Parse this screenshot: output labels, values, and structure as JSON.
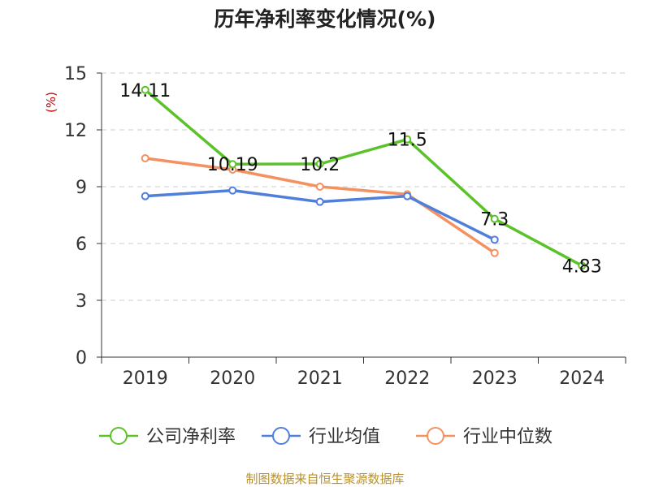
{
  "chart_data": {
    "type": "line",
    "title": "历年净利率变化情况(%)",
    "ylabel": "(%)",
    "categories": [
      "2019",
      "2020",
      "2021",
      "2022",
      "2023",
      "2024"
    ],
    "yticks": [
      "0",
      "3",
      "6",
      "9",
      "12",
      "15"
    ],
    "ylim": [
      0,
      15
    ],
    "grid": true,
    "legend_position": "bottom",
    "series": [
      {
        "name": "公司净利率",
        "color": "#5cc22a",
        "values": [
          14.11,
          10.19,
          10.2,
          11.5,
          7.3,
          4.83
        ],
        "labels": [
          "14.11",
          "10.19",
          "10.2",
          "11.5",
          "7.3",
          "4.83"
        ]
      },
      {
        "name": "行业均值",
        "color": "#4f7fdb",
        "values": [
          8.5,
          8.8,
          8.2,
          8.5,
          6.2,
          null
        ]
      },
      {
        "name": "行业中位数",
        "color": "#f39160",
        "values": [
          10.5,
          9.9,
          9.0,
          8.6,
          5.5,
          null
        ]
      }
    ],
    "source": "制图数据来自恒生聚源数据库"
  }
}
